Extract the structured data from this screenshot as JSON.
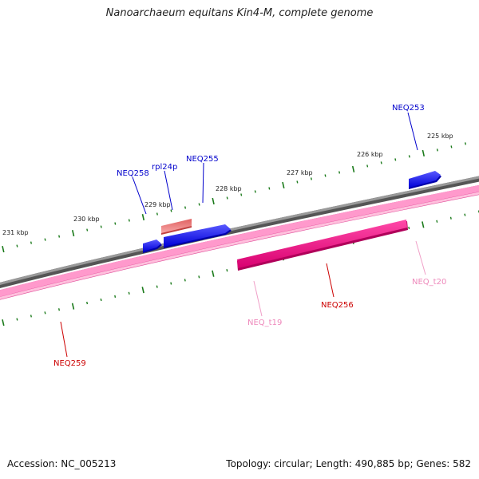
{
  "title": "Nanoarchaeum equitans Kin4-M, complete genome",
  "footer": {
    "accession": "Accession: NC_005213",
    "stats": "Topology: circular; Length: 490,885 bp; Genes: 582"
  },
  "colors": {
    "background": "#ffffff",
    "backbone": "#808080",
    "rna_track": "#ff99cc",
    "gene_forward": "#0000ee",
    "gene_reverse": "#e8007a",
    "rrna_forward": "#f08080",
    "tick": "#1a7a1a",
    "label_forward_gene": "#0000cc",
    "label_reverse_gene": "#cc0000",
    "label_rna": "#ee88bb"
  },
  "scale_labels": [
    "231 kbp",
    "230 kbp",
    "229 kbp",
    "228 kbp",
    "227 kbp",
    "226 kbp",
    "225 kbp"
  ],
  "features": [
    {
      "name": "NEQ253",
      "strand": "forward",
      "kind": "gene"
    },
    {
      "name": "NEQ255",
      "strand": "forward",
      "kind": "gene"
    },
    {
      "name": "rpl24p",
      "strand": "forward",
      "kind": "gene"
    },
    {
      "name": "NEQ258",
      "strand": "forward",
      "kind": "gene"
    },
    {
      "name": "NEQ256",
      "strand": "reverse",
      "kind": "gene"
    },
    {
      "name": "NEQ259",
      "strand": "reverse",
      "kind": "gene"
    },
    {
      "name": "NEQ_t19",
      "strand": "reverse",
      "kind": "tRNA"
    },
    {
      "name": "NEQ_t20",
      "strand": "reverse",
      "kind": "tRNA"
    }
  ]
}
